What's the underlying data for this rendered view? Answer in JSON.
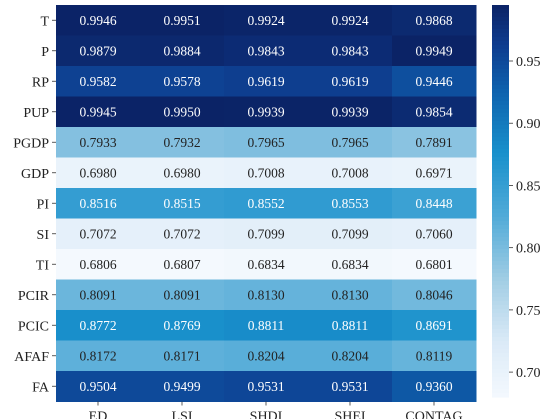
{
  "chart_data": {
    "type": "heatmap",
    "title": "",
    "xlabel": "",
    "ylabel": "",
    "x_categories": [
      "ED",
      "LSI",
      "SHDI",
      "SHEI",
      "CONTAG"
    ],
    "y_categories": [
      "T",
      "P",
      "RP",
      "PUP",
      "PGDP",
      "GDP",
      "PI",
      "SI",
      "TI",
      "PCIR",
      "PCIC",
      "AFAF",
      "FA"
    ],
    "values": [
      [
        0.9946,
        0.9951,
        0.9924,
        0.9924,
        0.9868
      ],
      [
        0.9879,
        0.9884,
        0.9843,
        0.9843,
        0.9949
      ],
      [
        0.9582,
        0.9578,
        0.9619,
        0.9619,
        0.9446
      ],
      [
        0.9945,
        0.995,
        0.9939,
        0.9939,
        0.9854
      ],
      [
        0.7933,
        0.7932,
        0.7965,
        0.7965,
        0.7891
      ],
      [
        0.698,
        0.698,
        0.7008,
        0.7008,
        0.6971
      ],
      [
        0.8516,
        0.8515,
        0.8552,
        0.8553,
        0.8448
      ],
      [
        0.7072,
        0.7072,
        0.7099,
        0.7099,
        0.706
      ],
      [
        0.6806,
        0.6807,
        0.6834,
        0.6834,
        0.6801
      ],
      [
        0.8091,
        0.8091,
        0.813,
        0.813,
        0.8046
      ],
      [
        0.8772,
        0.8769,
        0.8811,
        0.8811,
        0.8691
      ],
      [
        0.8172,
        0.8171,
        0.8204,
        0.8204,
        0.8119
      ],
      [
        0.9504,
        0.9499,
        0.9531,
        0.9531,
        0.936
      ]
    ],
    "value_format": "4 decimals",
    "colormap": "Blues-to-deep-navy",
    "colorbar": {
      "range": [
        0.68,
        0.995
      ],
      "ticks": [
        "0.70",
        "0.75",
        "0.80",
        "0.85",
        "0.90",
        "0.95"
      ]
    },
    "grid": false,
    "legend": "colorbar-right"
  },
  "colors": {
    "low": "#f4f9fe",
    "high": "#0b2366",
    "text_dark": "#222222",
    "text_light": "#ffffff"
  }
}
